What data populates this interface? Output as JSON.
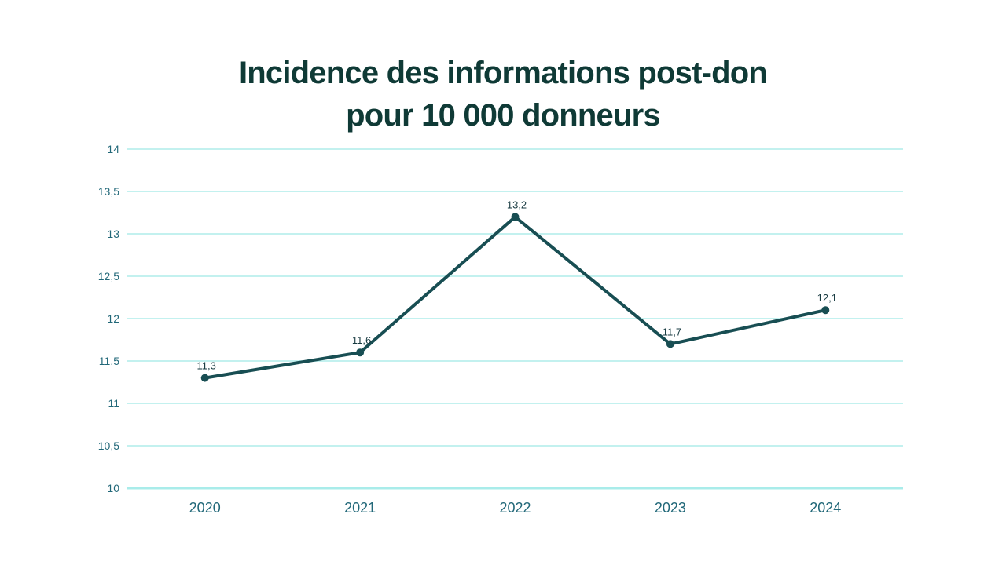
{
  "header": {
    "title_line1": "Incidence des informations post-don",
    "title_line2": "pour 10 000 donneurs"
  },
  "chart_data": {
    "type": "line",
    "title": "Incidence des informations post-don pour 10 000 donneurs",
    "categories": [
      "2020",
      "2021",
      "2022",
      "2023",
      "2024"
    ],
    "series": [
      {
        "name": "Incidence pour 10 000 donneurs",
        "values": [
          11.3,
          11.6,
          13.2,
          11.7,
          12.1
        ]
      }
    ],
    "point_labels": [
      "11,3",
      "11,6",
      "13,2",
      "11,7",
      "12,1"
    ],
    "y_ticks": [
      {
        "v": 14,
        "label": "14"
      },
      {
        "v": 13.5,
        "label": "13,5"
      },
      {
        "v": 13,
        "label": "13"
      },
      {
        "v": 12.5,
        "label": "12,5"
      },
      {
        "v": 12,
        "label": "12"
      },
      {
        "v": 11.5,
        "label": "11,5"
      },
      {
        "v": 11,
        "label": "11"
      },
      {
        "v": 10.5,
        "label": "10,5"
      },
      {
        "v": 10,
        "label": "10"
      }
    ],
    "ylim": [
      10,
      14
    ],
    "xlabel": "",
    "ylabel": "",
    "legend": "none",
    "grid": "horizontal",
    "decimal_separator": ",",
    "colors": {
      "title": "#0f3a36",
      "line": "#184e53",
      "marker": "#184e53",
      "gridline": "#c3f1ef",
      "axis_line": "#a9ecea",
      "tick_label": "#226879",
      "data_label": "#173a40",
      "background": "#ffffff"
    }
  }
}
